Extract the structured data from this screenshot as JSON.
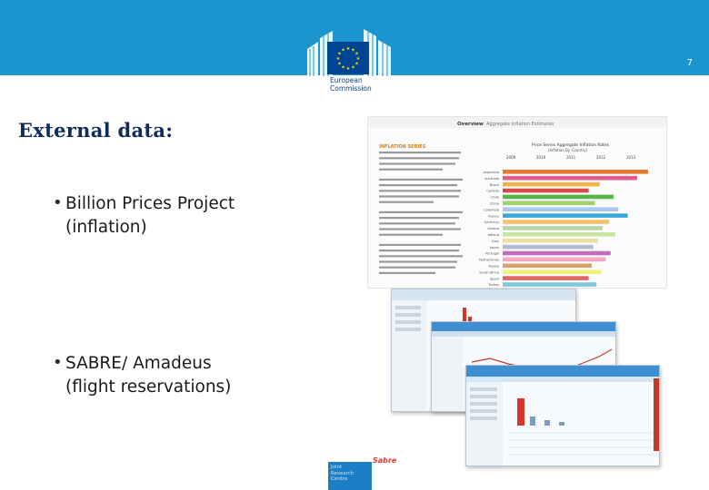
{
  "slide": {
    "page_number": "7",
    "title": "External data:",
    "bullets": [
      {
        "text_line1": "Billion Prices Project",
        "text_line2": "(inflation)"
      },
      {
        "text_line1": "SABRE/ Amadeus",
        "text_line2": "(flight reservations)"
      }
    ]
  },
  "colors": {
    "header_band": "#1c95cf",
    "title_color": "#0f2c5a",
    "ec_blue": "#004494",
    "eu_gold": "#ffdd00"
  },
  "logos": {
    "ec_line1": "European",
    "ec_line2": "Commission",
    "jrc_line1": "Joint",
    "jrc_line2": "Research",
    "jrc_line3": "Centre",
    "sabre_text": "Sabre"
  },
  "bpp_screenshot": {
    "tab_overview": "Overview",
    "tab_aggregate": "Aggregate Inflation Estimates",
    "chart_title": "Price Series Aggregate Inflation Rates",
    "chart_subtitle": "(Inflation By Country)",
    "years": [
      "2009",
      "2010",
      "2011",
      "2012",
      "2013"
    ],
    "left_heading": "INFLATION SERIES",
    "countries": [
      "Argentina",
      "Australia",
      "Brazil",
      "Canada",
      "Chile",
      "China",
      "Colombia",
      "France",
      "Germany",
      "Greece",
      "Ireland",
      "Italy",
      "Japan",
      "Portugal",
      "Netherlands",
      "Russia",
      "South Africa",
      "Spain",
      "Turkey"
    ],
    "bar_colors": [
      "#e87a2e",
      "#e25b8f",
      "#f0b64a",
      "#d94a4a",
      "#54b848",
      "#9ed36a",
      "#a9c8ec",
      "#3aa7d8",
      "#f5c16c",
      "#b6d7a8",
      "#c8e6a0",
      "#e9e0a0",
      "#b7b7d8",
      "#c06eb9",
      "#f4a8c4",
      "#d7a56b",
      "#f2f07a",
      "#e06666",
      "#7fc6e0"
    ],
    "bar_values": [
      0.93,
      0.86,
      0.62,
      0.55,
      0.71,
      0.59,
      0.74,
      0.8,
      0.68,
      0.64,
      0.72,
      0.61,
      0.58,
      0.69,
      0.66,
      0.57,
      0.63,
      0.55,
      0.6
    ]
  }
}
